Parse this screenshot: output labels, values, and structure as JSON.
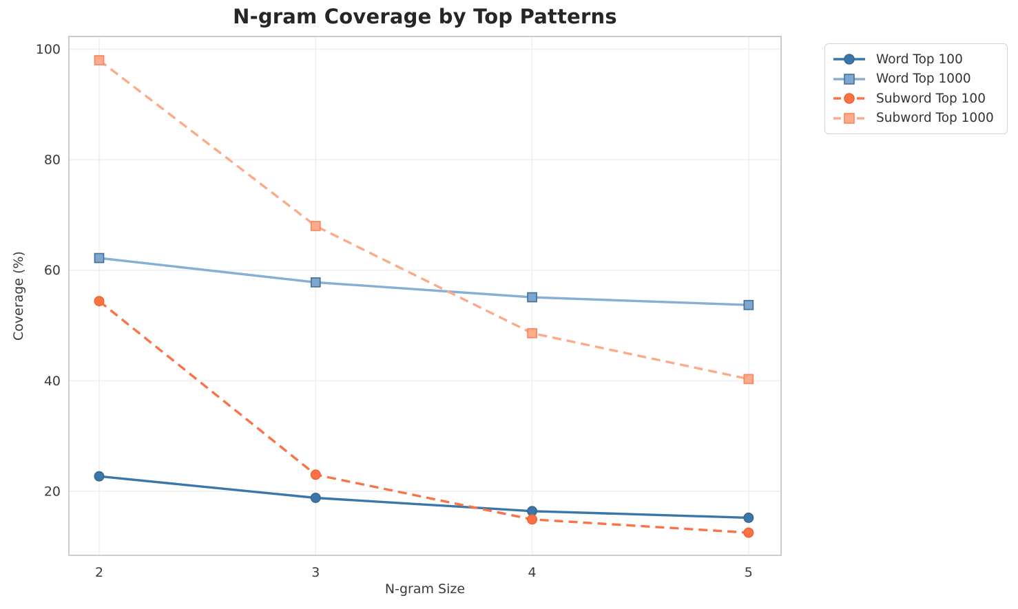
{
  "chart_data": {
    "type": "line",
    "title": "N-gram Coverage by Top Patterns",
    "xlabel": "N-gram Size",
    "ylabel": "Coverage (%)",
    "x": [
      2,
      3,
      4,
      5
    ],
    "xticks": [
      2,
      3,
      4,
      5
    ],
    "yticks": [
      20,
      40,
      60,
      80,
      100
    ],
    "xlim": [
      1.86,
      5.15
    ],
    "ylim": [
      8.4,
      102.3
    ],
    "grid": true,
    "legend_position": "outside-upper-right",
    "series": [
      {
        "name": "Word Top 100",
        "values": [
          22.7,
          18.8,
          16.4,
          15.2
        ],
        "line_color": "#3b76a8",
        "marker_fill": "#3b76a8",
        "marker_edge": "#35688f",
        "marker": "circle",
        "dash": "solid"
      },
      {
        "name": "Word Top 1000",
        "values": [
          62.2,
          57.8,
          55.1,
          53.7
        ],
        "line_color": "#87aed3",
        "marker_fill": "#7fa6cc",
        "marker_edge": "#41719c",
        "marker": "square",
        "dash": "solid"
      },
      {
        "name": "Subword Top 100",
        "values": [
          54.4,
          23.0,
          14.9,
          12.5
        ],
        "line_color": "#fa7246",
        "marker_fill": "#fa7246",
        "marker_edge": "#f2602f",
        "marker": "circle",
        "dash": "dashed"
      },
      {
        "name": "Subword Top 1000",
        "values": [
          98.0,
          68.0,
          48.6,
          40.3
        ],
        "line_color": "#fcaa88",
        "marker_fill": "#fcab8c",
        "marker_edge": "#fa8660",
        "marker": "square",
        "dash": "dashed"
      }
    ]
  },
  "style": {
    "background": "#ffffff",
    "grid_color": "#efeff1",
    "spine_color": "#cccccc",
    "tick_text_color": "#3a3a3a",
    "title_color": "#262626",
    "legend_border_color": "#d4d4d4",
    "legend_text_color": "#333333"
  }
}
